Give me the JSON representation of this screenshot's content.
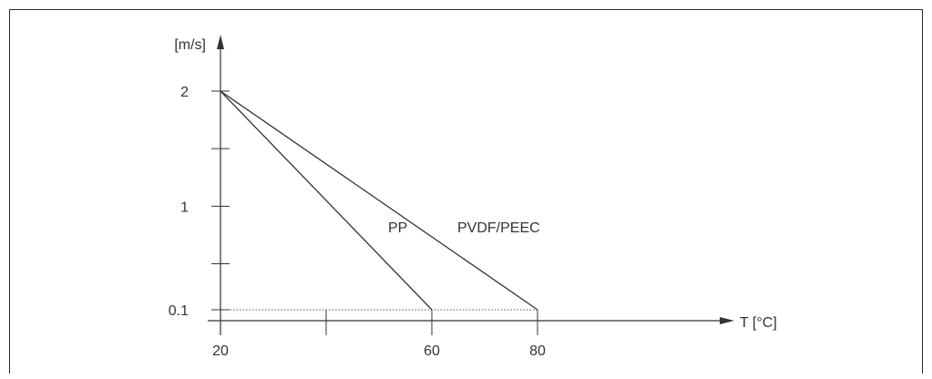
{
  "chart_data": {
    "type": "line",
    "title": "",
    "xlabel": "T [°C]",
    "ylabel": "[m/s]",
    "xlim": [
      20,
      80
    ],
    "x_ticks": [
      20,
      40,
      60,
      80
    ],
    "x_tick_labels": [
      "20",
      "",
      "60",
      "80"
    ],
    "y_ticks": [
      "0.1",
      "0.5",
      "1",
      "1.5",
      "2"
    ],
    "y_tick_labels": [
      "0.1",
      "",
      "1",
      "",
      "2"
    ],
    "ylim": [
      "0.1",
      "2"
    ],
    "grid": false,
    "legend": "none",
    "reference_line": {
      "y": 0.1,
      "x_from": 20,
      "x_to": 80,
      "style": "dotted"
    },
    "series": [
      {
        "name": "PP",
        "x": [
          20,
          60
        ],
        "y": [
          2,
          0.1
        ]
      },
      {
        "name": "PVDF/PEEC",
        "x": [
          20,
          80
        ],
        "y": [
          2,
          0.1
        ]
      }
    ]
  }
}
